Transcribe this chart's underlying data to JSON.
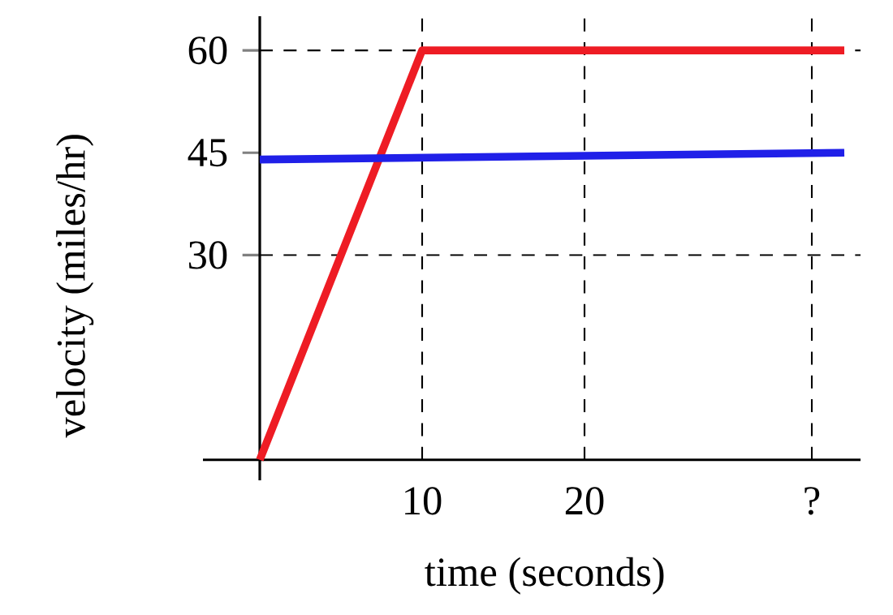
{
  "chart_data": {
    "type": "line",
    "xlabel": "time (seconds)",
    "ylabel": "velocity (miles/hr)",
    "xlim": [
      -3.5,
      37
    ],
    "ylim": [
      -3,
      65
    ],
    "xticks": [
      10,
      20,
      {
        "value": 34,
        "label": "?"
      }
    ],
    "yticks": [
      30,
      45,
      60
    ],
    "series": [
      {
        "color": "#ee1c24",
        "x": [
          0,
          10,
          36
        ],
        "values": [
          0,
          60,
          60
        ]
      },
      {
        "color": "#2020e8",
        "x": [
          0,
          36
        ],
        "values": [
          44,
          45
        ]
      }
    ],
    "ref_lines": [
      {
        "axis": "y",
        "value": 60,
        "line_style": "dashed"
      },
      {
        "axis": "y",
        "value": 30,
        "line_style": "dashed"
      },
      {
        "axis": "x",
        "value": 10,
        "line_style": "dashed"
      },
      {
        "axis": "x",
        "value": 20,
        "line_style": "dashed"
      },
      {
        "axis": "x",
        "value": 34,
        "line_style": "dashed"
      }
    ],
    "marker": "none",
    "line_style": "solid"
  }
}
